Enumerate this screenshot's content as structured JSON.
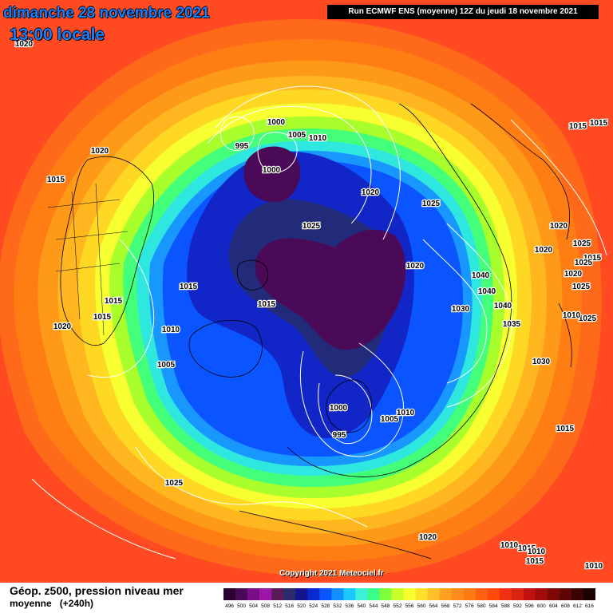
{
  "header": {
    "date": "dimanche 28 novembre 2021",
    "time": "13:00 locale",
    "run": "Run ECMWF ENS (moyenne) 12Z du jeudi 18 novembre 2021"
  },
  "copyright": "Copyright 2021 Meteociel.fr",
  "footer": {
    "title": "Géop. z500, pression niveau mer",
    "subtitle": "moyenne",
    "lead": "(+240h)"
  },
  "scale": {
    "values": [
      "496",
      "500",
      "504",
      "508",
      "512",
      "516",
      "520",
      "524",
      "528",
      "532",
      "536",
      "540",
      "544",
      "548",
      "552",
      "556",
      "560",
      "564",
      "568",
      "572",
      "576",
      "580",
      "584",
      "588",
      "592",
      "596",
      "600",
      "604",
      "608",
      "612",
      "616"
    ],
    "colors": [
      "#2a0030",
      "#4b0a58",
      "#7a0e86",
      "#9c16a8",
      "#5a1a5a",
      "#2b2b6b",
      "#14148e",
      "#0a2ad0",
      "#0a55ff",
      "#1390ff",
      "#1bc8ff",
      "#3ef0d8",
      "#37ff8a",
      "#7dff3b",
      "#c8ff2a",
      "#f7ff30",
      "#ffe02a",
      "#ffc02a",
      "#ffa020",
      "#ff8c1a",
      "#ff7a12",
      "#ff600e",
      "#ff4a0a",
      "#f03010",
      "#d82412",
      "#c01010",
      "#a00c0c",
      "#7e0808",
      "#5c0606",
      "#3a0404",
      "#1a0202"
    ]
  },
  "map_colors": {
    "outer": "#ff4a22",
    "ring": [
      "#ff6a1a",
      "#ff7e14",
      "#ff9a18",
      "#ffb61f",
      "#ffd824",
      "#f7ff30",
      "#a8ff2c",
      "#43ff7a",
      "#2ee8e0",
      "#1898ff",
      "#0a55ff",
      "#1226c8",
      "#222a7a",
      "#4b0a58"
    ],
    "contour": "#ffffff",
    "coast": "#000000"
  },
  "pressure_labels": [
    "1020",
    "1015",
    "1020",
    "995",
    "1000",
    "1005",
    "1010",
    "1000",
    "1020",
    "1025",
    "1025",
    "1020",
    "1015",
    "1015",
    "1015",
    "1010",
    "1005",
    "1015",
    "1030",
    "1040",
    "1040",
    "1040",
    "1035",
    "1030",
    "1000",
    "995",
    "1005",
    "1010",
    "1020",
    "1025",
    "1020",
    "1015",
    "1020",
    "1025",
    "1025",
    "1025",
    "1015",
    "1015",
    "1015",
    "1020",
    "1025",
    "1015",
    "1010",
    "1010",
    "1010",
    "1020",
    "1010",
    "1015"
  ]
}
